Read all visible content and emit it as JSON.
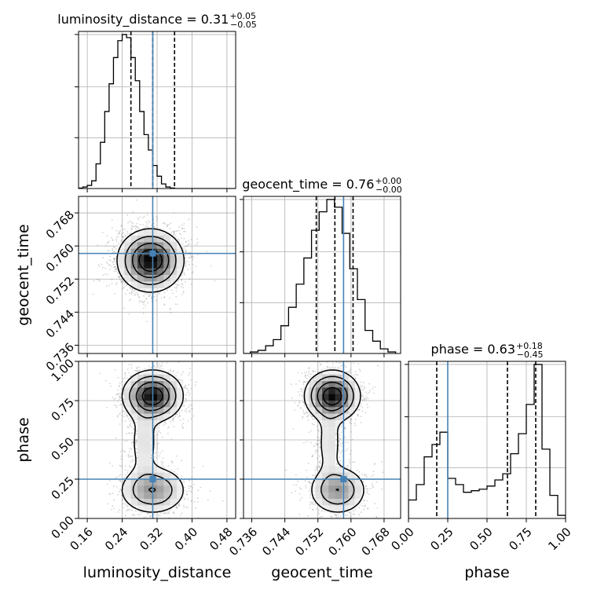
{
  "chart_data": {
    "type": "corner",
    "colors": {
      "hist": "#000000",
      "truth": "#4682b4",
      "contour": "#000000",
      "density": "#808080",
      "grid": "#b0b0b0",
      "quantile": "#000000"
    },
    "params": [
      {
        "name": "luminosity_distance",
        "range": [
          0.14,
          0.5
        ],
        "ticks": [
          "0.16",
          "0.24",
          "0.32",
          "0.40",
          "0.48"
        ],
        "truth": 0.31,
        "quantiles": [
          0.26,
          0.31,
          0.36
        ],
        "title_main": "luminosity_distance = 0.31",
        "title_sup": "+0.05",
        "title_sub": "−0.05",
        "hist": {
          "edges_start": 0.14,
          "bin_width": 0.01,
          "values": [
            0.003,
            0.01,
            0.02,
            0.05,
            0.16,
            0.3,
            0.5,
            0.68,
            0.85,
            0.96,
            1.0,
            0.98,
            0.85,
            0.7,
            0.5,
            0.35,
            0.25,
            0.15,
            0.08,
            0.03,
            0.01,
            0.003,
            0.0,
            0.0,
            0.0,
            0.0,
            0.0,
            0.0,
            0.0,
            0.0,
            0.0,
            0.0,
            0.0,
            0.0,
            0.0,
            0.0
          ],
          "ymax": 1.02
        }
      },
      {
        "name": "geocent_time",
        "range": [
          0.734,
          0.772
        ],
        "ticks": [
          "0.736",
          "0.744",
          "0.752",
          "0.760",
          "0.768"
        ],
        "truth": 0.7582,
        "quantiles": [
          0.7516,
          0.7561,
          0.7605
        ],
        "title_main": "geocent_time = 0.76",
        "title_sup": "+0.00",
        "title_sub": "−0.00",
        "hist": {
          "edges_start": 0.7338,
          "bin_width": 0.00185,
          "values": [
            0.0,
            0.01,
            0.02,
            0.05,
            0.09,
            0.18,
            0.3,
            0.45,
            0.62,
            0.8,
            0.92,
            1.0,
            0.95,
            0.78,
            0.55,
            0.35,
            0.15,
            0.08,
            0.03,
            0.01
          ],
          "ymax": 1.02
        }
      },
      {
        "name": "phase",
        "range": [
          0.0,
          1.0
        ],
        "ticks": [
          "0.00",
          "0.25",
          "0.50",
          "0.75",
          "1.00"
        ],
        "truth": 0.25,
        "quantiles": [
          0.18,
          0.63,
          0.81
        ],
        "title_main": "phase = 0.63",
        "title_sup": "+0.18",
        "title_sub": "−0.45",
        "hist": {
          "edges_start": 0.0,
          "bin_width": 0.05,
          "values": [
            0.12,
            0.22,
            0.4,
            0.48,
            0.56,
            0.26,
            0.22,
            0.17,
            0.18,
            0.19,
            0.21,
            0.25,
            0.29,
            0.42,
            0.55,
            0.74,
            1.0,
            0.45,
            0.15,
            0.02
          ],
          "ymax": 1.02
        }
      }
    ],
    "pairs": [
      {
        "x": 0,
        "y": 1,
        "truth": [
          0.31,
          0.7582
        ],
        "blobs": [
          {
            "cx": 0.305,
            "cy": 0.7565,
            "sx": 0.037,
            "sy": 0.0037,
            "w": 1.0
          }
        ]
      },
      {
        "x": 0,
        "y": 2,
        "truth": [
          0.31,
          0.25
        ],
        "blobs": [
          {
            "cx": 0.31,
            "cy": 0.78,
            "sx": 0.034,
            "sy": 0.08,
            "w": 1.0
          },
          {
            "cx": 0.31,
            "cy": 0.18,
            "sx": 0.04,
            "sy": 0.08,
            "w": 0.55
          },
          {
            "cx": 0.29,
            "cy": 0.48,
            "sx": 0.02,
            "sy": 0.13,
            "w": 0.22
          }
        ]
      },
      {
        "x": 1,
        "y": 2,
        "truth": [
          0.7582,
          0.25
        ],
        "blobs": [
          {
            "cx": 0.7555,
            "cy": 0.78,
            "sx": 0.0033,
            "sy": 0.08,
            "w": 1.0
          },
          {
            "cx": 0.7568,
            "cy": 0.18,
            "sx": 0.0036,
            "sy": 0.08,
            "w": 0.55
          },
          {
            "cx": 0.7548,
            "cy": 0.48,
            "sx": 0.0018,
            "sy": 0.13,
            "w": 0.22
          }
        ]
      }
    ]
  }
}
